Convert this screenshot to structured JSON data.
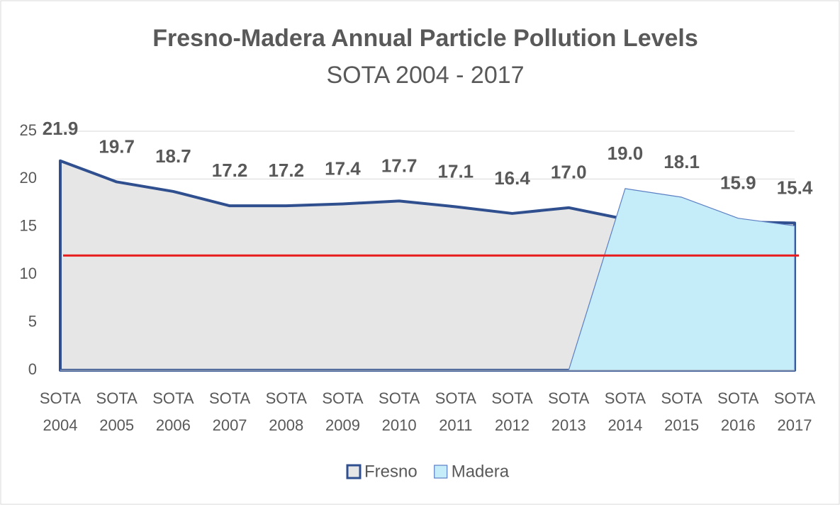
{
  "chart_data": {
    "type": "area",
    "title": "Fresno-Madera Annual Particle Pollution Levels",
    "subtitle": "SOTA 2004 - 2017",
    "categories": [
      "SOTA 2004",
      "SOTA 2005",
      "SOTA 2006",
      "SOTA 2007",
      "SOTA 2008",
      "SOTA 2009",
      "SOTA 2010",
      "SOTA 2011",
      "SOTA 2012",
      "SOTA 2013",
      "SOTA 2014",
      "SOTA 2015",
      "SOTA 2016",
      "SOTA 2017"
    ],
    "series": [
      {
        "name": "Fresno",
        "color": "#2f4f8f",
        "fill": "#e6e6e6",
        "values": [
          21.9,
          19.7,
          18.7,
          17.2,
          17.2,
          17.4,
          17.7,
          17.1,
          16.4,
          17.0,
          15.8,
          15.6,
          15.5,
          15.4
        ],
        "value_labels": [
          "21.9",
          "19.7",
          "18.7",
          "17.2",
          "17.2",
          "17.4",
          "17.7",
          "17.1",
          "16.4",
          "17.0",
          null,
          null,
          null,
          "15.4"
        ]
      },
      {
        "name": "Madera",
        "color": "#5b7fc4",
        "fill": "#c5ecf9",
        "values": [
          0,
          0,
          0,
          0,
          0,
          0,
          0,
          0,
          0,
          0,
          19.0,
          18.1,
          15.9,
          15.1
        ],
        "value_labels": [
          null,
          null,
          null,
          null,
          null,
          null,
          null,
          null,
          null,
          null,
          "19.0",
          "18.1",
          "15.9",
          null
        ]
      }
    ],
    "threshold": 12,
    "threshold_color": "#e81c1c",
    "ylim": [
      0,
      25
    ],
    "yticks": [
      0,
      5,
      10,
      15,
      20,
      25
    ],
    "grid": true,
    "legend": "bottom"
  }
}
